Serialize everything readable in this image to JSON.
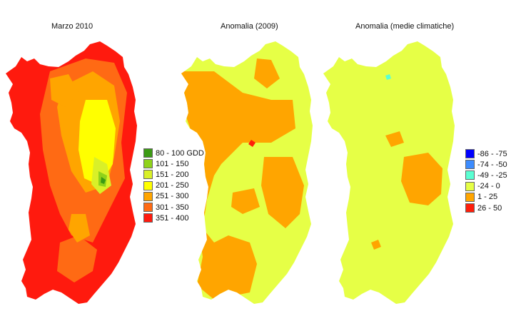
{
  "panels": [
    {
      "title": "Marzo 2010"
    },
    {
      "title": "Anomalia (2009)"
    },
    {
      "title": "Anomalia (medie climatiche)"
    }
  ],
  "legend_gdd": [
    {
      "label": "80 - 100 GDD",
      "color": "#3c9a14"
    },
    {
      "label": "101 - 150",
      "color": "#8fd21a"
    },
    {
      "label": "151 - 200",
      "color": "#d9f028"
    },
    {
      "label": "201 - 250",
      "color": "#ffff00"
    },
    {
      "label": "251 - 300",
      "color": "#ffa500"
    },
    {
      "label": "301 - 350",
      "color": "#ff6a14"
    },
    {
      "label": "351 - 400",
      "color": "#ff1a0e"
    }
  ],
  "legend_anomaly": [
    {
      "label": "-86 - -75",
      "color": "#0000ff"
    },
    {
      "label": "-74 - -50",
      "color": "#3c8cff"
    },
    {
      "label": "-49 - -25",
      "color": "#5affd2"
    },
    {
      "label": "-24 - 0",
      "color": "#e6ff46"
    },
    {
      "label": "1 - 25",
      "color": "#ffa500"
    },
    {
      "label": "26 - 50",
      "color": "#ff1e0a"
    }
  ]
}
